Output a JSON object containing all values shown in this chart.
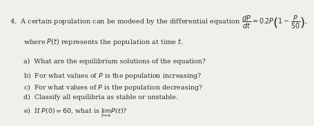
{
  "background_color": "#f0f0eb",
  "text_color": "#2a2a2a",
  "number": "4.",
  "line1": "A certain population can be modeed by the differential equation $\\dfrac{dP}{dt} = 0.2P\\left(1 - \\dfrac{P}{50}\\right)$,",
  "line2": "where $P(t)$ represents the population at time $t$.",
  "items": [
    "a)  What are the equilibrium solutions of the equation?",
    "b)  For what values of $P$ is the population increasing?",
    "c)  For what values of $P$ is the population decreasing?",
    "d)  Classify all equilibria as stable or unstable.",
    "e)  If $P(0) = 60$, what is $\\lim_{t \\to \\infty} P(t)$?"
  ],
  "fontsize_main": 7.0,
  "fontsize_items": 6.8
}
